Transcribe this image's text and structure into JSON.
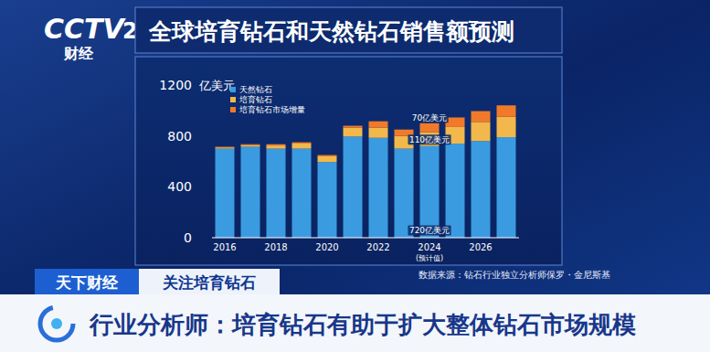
{
  "page": {
    "logo": "CCTV",
    "channel": "2",
    "channel_name": "财经",
    "program": "天下财经",
    "topic": "关注培育钻石",
    "source": "数据来源：钻石行业独立分析师保罗・金尼斯基",
    "headline": "行业分析师：培育钻石有助于扩大整体钻石市场规模"
  },
  "chart_data": {
    "type": "bar",
    "stacked": true,
    "title": "全球培育钻石和天然钻石销售额预测",
    "y_label": "亿美元",
    "categories": [
      "2016",
      null,
      "2018",
      null,
      "2020",
      null,
      "2022",
      null,
      "2024\n(预计值)",
      null,
      "2026",
      null
    ],
    "series": [
      {
        "name": "天然钻石",
        "color": "#3a9be0",
        "values": [
          700,
          715,
          700,
          700,
          595,
          795,
          785,
          700,
          720,
          740,
          760,
          790
        ],
        "value_labels": [
          null,
          null,
          null,
          null,
          null,
          null,
          null,
          null,
          "720亿美元",
          null,
          null,
          null
        ]
      },
      {
        "name": "培育钻石",
        "color": "#f2b84b",
        "values": [
          10,
          15,
          25,
          40,
          45,
          70,
          80,
          100,
          110,
          130,
          150,
          160
        ],
        "value_labels": [
          null,
          null,
          null,
          null,
          null,
          null,
          null,
          null,
          "110亿美元",
          null,
          null,
          null
        ]
      },
      {
        "name": "培育钻石市场增量",
        "color": "#f07a2a",
        "values": [
          5,
          5,
          10,
          10,
          10,
          15,
          50,
          50,
          70,
          75,
          85,
          90
        ],
        "value_labels": [
          null,
          null,
          null,
          null,
          null,
          null,
          null,
          null,
          "70亿美元",
          null,
          null,
          null
        ]
      }
    ],
    "ylim": [
      0,
      1200
    ],
    "yticks": [
      0,
      400,
      800,
      1200
    ],
    "grid": false,
    "legend": "top-left"
  }
}
